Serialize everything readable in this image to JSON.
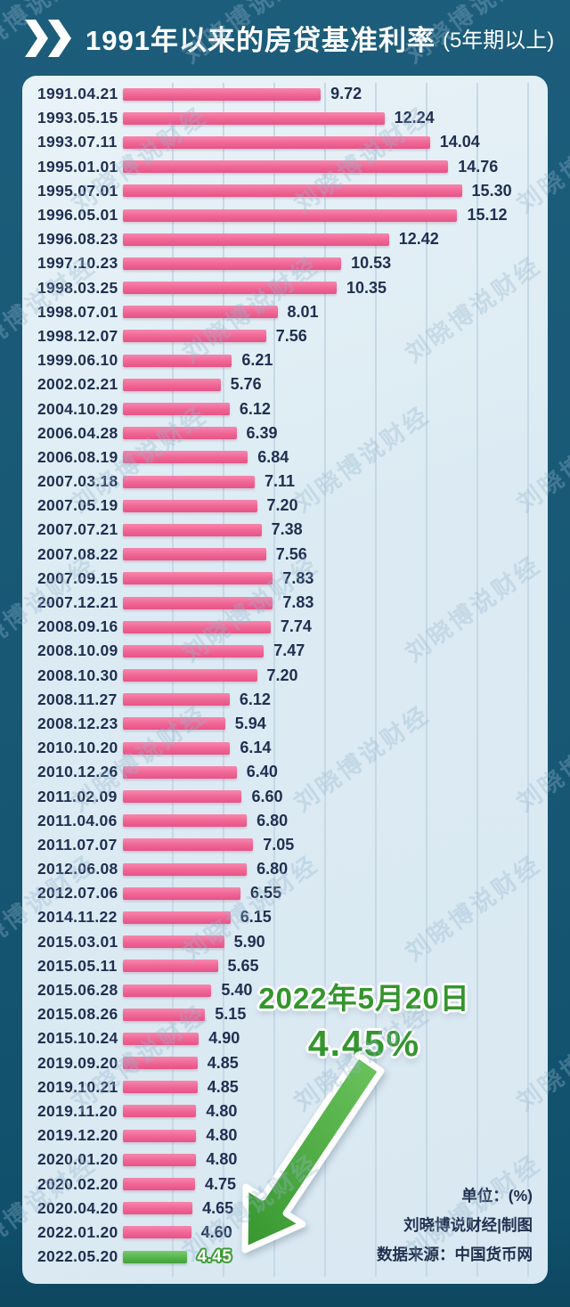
{
  "header": {
    "icon": "double-chevron-right",
    "title": "1991年以来的房贷基准利率",
    "subtitle": "(5年期以上)"
  },
  "watermark_text": "刘晓博说财经",
  "annotation": {
    "date_line": "2022年5月20日",
    "rate_line": "4.45%"
  },
  "footer": {
    "unit_label": "单位：(%)",
    "credit": "刘晓博说财经|制图",
    "source": "数据来源：中国货币网"
  },
  "colors": {
    "background": "#175774",
    "panel": "#dcebf3",
    "bar_pink": "#ef6595",
    "bar_pink_light": "#f687ad",
    "bar_pink_dark": "#e75385",
    "bar_green": "#57b44c",
    "green_outline": "#3d9c34",
    "annotation_green": "#33962d",
    "text_dark": "#212f52",
    "header_text": "#ffffff",
    "gridline": "#c6d9e6"
  },
  "chart_data": {
    "type": "bar",
    "orientation": "horizontal",
    "title": "1991年以来的房贷基准利率 (5年期以上)",
    "unit": "%",
    "xlim": [
      2,
      16
    ],
    "grid": true,
    "legend": "none",
    "categories": [
      "1991.04.21",
      "1993.05.15",
      "1993.07.11",
      "1995.01.01",
      "1995.07.01",
      "1996.05.01",
      "1996.08.23",
      "1997.10.23",
      "1998.03.25",
      "1998.07.01",
      "1998.12.07",
      "1999.06.10",
      "2002.02.21",
      "2004.10.29",
      "2006.04.28",
      "2006.08.19",
      "2007.03.18",
      "2007.05.19",
      "2007.07.21",
      "2007.08.22",
      "2007.09.15",
      "2007.12.21",
      "2008.09.16",
      "2008.10.09",
      "2008.10.30",
      "2008.11.27",
      "2008.12.23",
      "2010.10.20",
      "2010.12.26",
      "2011.02.09",
      "2011.04.06",
      "2011.07.07",
      "2012.06.08",
      "2012.07.06",
      "2014.11.22",
      "2015.03.01",
      "2015.05.11",
      "2015.06.28",
      "2015.08.26",
      "2015.10.24",
      "2019.09.20",
      "2019.10.21",
      "2019.11.20",
      "2019.12.20",
      "2020.01.20",
      "2020.02.20",
      "2020.04.20",
      "2022.01.20",
      "2022.05.20"
    ],
    "values": [
      9.72,
      12.24,
      14.04,
      14.76,
      15.3,
      15.12,
      12.42,
      10.53,
      10.35,
      8.01,
      7.56,
      6.21,
      5.76,
      6.12,
      6.39,
      6.84,
      7.11,
      7.2,
      7.38,
      7.56,
      7.83,
      7.83,
      7.74,
      7.47,
      7.2,
      6.12,
      5.94,
      6.14,
      6.4,
      6.6,
      6.8,
      7.05,
      6.8,
      6.55,
      6.15,
      5.9,
      5.65,
      5.4,
      5.15,
      4.9,
      4.85,
      4.85,
      4.8,
      4.8,
      4.8,
      4.75,
      4.65,
      4.6,
      4.45
    ],
    "value_labels": [
      "9.72",
      "12.24",
      "14.04",
      "14.76",
      "15.30",
      "15.12",
      "12.42",
      "10.53",
      "10.35",
      "8.01",
      "7.56",
      "6.21",
      "5.76",
      "6.12",
      "6.39",
      "6.84",
      "7.11",
      "7.20",
      "7.38",
      "7.56",
      "7.83",
      "7.83",
      "7.74",
      "7.47",
      "7.20",
      "6.12",
      "5.94",
      "6.14",
      "6.40",
      "6.60",
      "6.80",
      "7.05",
      "6.80",
      "6.55",
      "6.15",
      "5.90",
      "5.65",
      "5.40",
      "5.15",
      "4.90",
      "4.85",
      "4.85",
      "4.80",
      "4.80",
      "4.80",
      "4.75",
      "4.65",
      "4.60",
      "4.45"
    ],
    "highlight": {
      "index": 48,
      "category": "2022.05.20",
      "value": 4.45,
      "color": "green"
    }
  }
}
